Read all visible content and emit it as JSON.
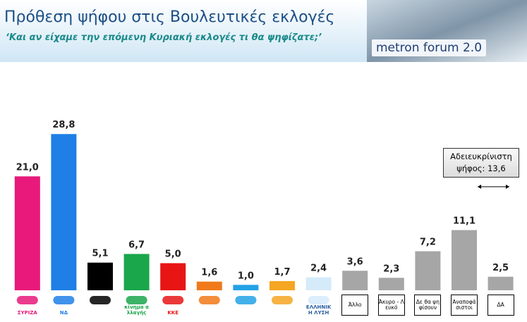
{
  "chart_data": {
    "type": "bar",
    "title": "Πρόθεση ψήφου στις Βουλευτικές εκλογές",
    "subtitle": "‘Και αν είχαμε την επόμενη Κυριακή εκλογές τι θα ψηφίζατε;’",
    "brand": "metron forum 2.0",
    "categories": [
      "ΣΥΡΙΖΑ",
      "ΝΔ",
      null,
      "κίνημα αλλαγής",
      "ΚΚΕ",
      null,
      null,
      null,
      "ΕΛΛΗΝΙΚΗ ΛΥΣΗ",
      "Άλλο",
      "Άκυρο - Λευκό",
      "Δε θα ψηφίσουν",
      "Αναποφάσιστοι",
      "ΔΑ"
    ],
    "values": [
      21.0,
      28.8,
      5.1,
      6.7,
      5.0,
      1.6,
      1.0,
      1.7,
      2.4,
      3.6,
      2.3,
      7.2,
      11.1,
      2.5
    ],
    "value_labels": [
      "21,0",
      "28,8",
      "5,1",
      "6,7",
      "5,0",
      "1,6",
      "1,0",
      "1,7",
      "2,4",
      "3,6",
      "2,3",
      "7,2",
      "11,1",
      "2,5"
    ],
    "colors": [
      "#e8197a",
      "#1f7fe6",
      "#000000",
      "#1aa64b",
      "#e81515",
      "#f07a1a",
      "#22a2e6",
      "#f5a623",
      "#d6ebfa",
      "#a6a6a6",
      "#a6a6a6",
      "#a6a6a6",
      "#a6a6a6",
      "#a6a6a6"
    ],
    "ylim": [
      0,
      30
    ],
    "annotation": [
      "Αδειευκρίνιστη",
      "ψήφος: 13,6"
    ]
  }
}
